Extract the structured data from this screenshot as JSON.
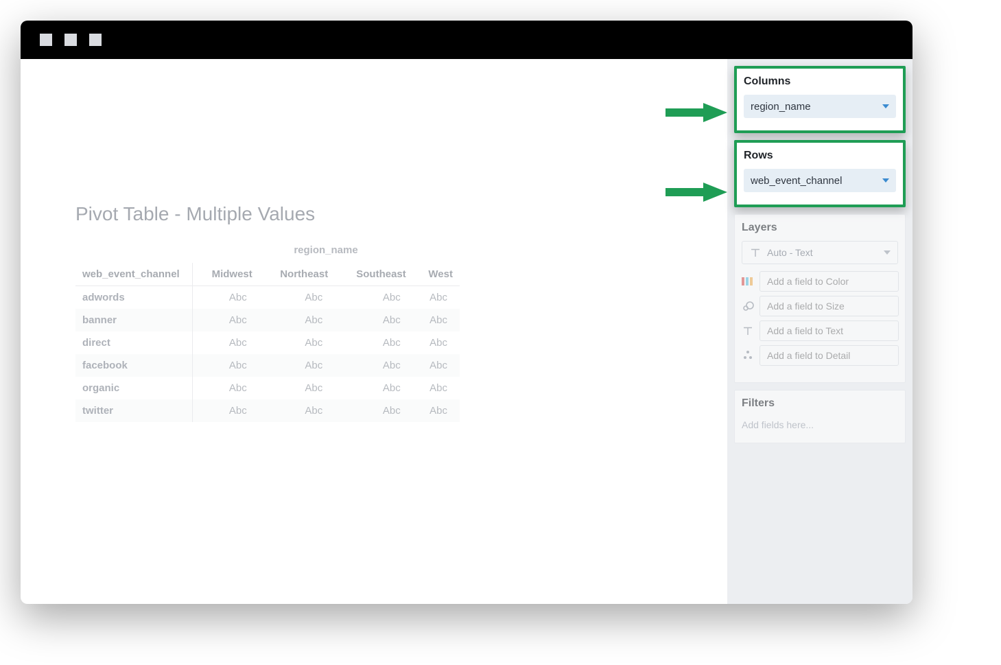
{
  "colors": {
    "highlight_border": "#1f9d55",
    "arrow_fill": "#1f9d55",
    "pill_bg": "#e6eef5",
    "caret_blue": "#3b8bd0",
    "sidebar_bg": "#eceef1",
    "titlebar_bg": "#000000",
    "text_muted": "#7d838d",
    "row_alt_bg": "#f7f8f9"
  },
  "pivot": {
    "title": "Pivot Table - Multiple Values",
    "column_field": "region_name",
    "row_field": "web_event_channel",
    "columns": [
      "Midwest",
      "Northeast",
      "Southeast",
      "West"
    ],
    "rows": [
      "adwords",
      "banner",
      "direct",
      "facebook",
      "organic",
      "twitter"
    ],
    "cell_placeholder": "Abc"
  },
  "shelves": {
    "columns": {
      "title": "Columns",
      "pill": "region_name"
    },
    "rows": {
      "title": "Rows",
      "pill": "web_event_channel"
    }
  },
  "layers": {
    "title": "Layers",
    "mark_type": "Auto - Text",
    "fields": {
      "color": {
        "placeholder": "Add a field to Color"
      },
      "size": {
        "placeholder": "Add a field to Size"
      },
      "text": {
        "placeholder": "Add a field to Text"
      },
      "detail": {
        "placeholder": "Add a field to Detail"
      }
    }
  },
  "filters": {
    "title": "Filters",
    "placeholder": "Add fields here..."
  }
}
